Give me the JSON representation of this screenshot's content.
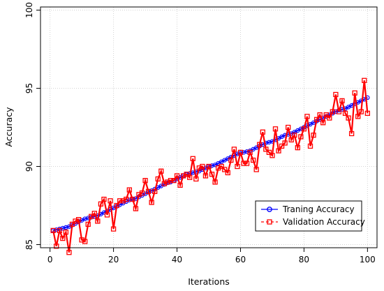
{
  "chart_data": {
    "type": "line",
    "title": "",
    "xlabel": "Iterations",
    "ylabel": "Accuracy",
    "xlim": [
      -3,
      103
    ],
    "ylim": [
      84.8,
      100.2
    ],
    "xticks": [
      0,
      20,
      40,
      60,
      80,
      100
    ],
    "yticks": [
      85,
      90,
      95,
      100
    ],
    "grid": true,
    "legend_position": "bottom-right",
    "series": [
      {
        "name": "Traning Accuracy",
        "color": "#0000ff",
        "marker": "circle",
        "line_style": "solid",
        "x": [
          1,
          2,
          3,
          4,
          5,
          6,
          7,
          8,
          9,
          10,
          11,
          12,
          13,
          14,
          15,
          16,
          17,
          18,
          19,
          20,
          21,
          22,
          23,
          24,
          25,
          26,
          27,
          28,
          29,
          30,
          31,
          32,
          33,
          34,
          35,
          36,
          37,
          38,
          39,
          40,
          41,
          42,
          43,
          44,
          45,
          46,
          47,
          48,
          49,
          50,
          51,
          52,
          53,
          54,
          55,
          56,
          57,
          58,
          59,
          60,
          61,
          62,
          63,
          64,
          65,
          66,
          67,
          68,
          69,
          70,
          71,
          72,
          73,
          74,
          75,
          76,
          77,
          78,
          79,
          80,
          81,
          82,
          83,
          84,
          85,
          86,
          87,
          88,
          89,
          90,
          91,
          92,
          93,
          94,
          95,
          96,
          97,
          98,
          99,
          100
        ],
        "values": [
          85.9,
          85.95,
          86.0,
          86.05,
          86.1,
          86.15,
          86.25,
          86.35,
          86.45,
          86.55,
          86.65,
          86.7,
          86.75,
          86.8,
          86.85,
          86.95,
          87.05,
          87.15,
          87.25,
          87.35,
          87.45,
          87.55,
          87.65,
          87.75,
          87.85,
          87.9,
          87.95,
          88.05,
          88.15,
          88.25,
          88.35,
          88.45,
          88.55,
          88.65,
          88.75,
          88.85,
          88.95,
          89.0,
          89.1,
          89.2,
          89.3,
          89.4,
          89.5,
          89.55,
          89.6,
          89.65,
          89.7,
          89.8,
          89.9,
          90.0,
          90.05,
          90.1,
          90.2,
          90.3,
          90.4,
          90.5,
          90.6,
          90.7,
          90.8,
          90.85,
          90.9,
          90.95,
          91.0,
          91.1,
          91.2,
          91.3,
          91.4,
          91.5,
          91.55,
          91.6,
          91.7,
          91.8,
          91.9,
          92.0,
          92.05,
          92.1,
          92.2,
          92.3,
          92.4,
          92.5,
          92.6,
          92.7,
          92.8,
          92.9,
          93.0,
          93.1,
          93.2,
          93.3,
          93.4,
          93.5,
          93.6,
          93.65,
          93.7,
          93.8,
          93.9,
          94.0,
          94.1,
          94.2,
          94.3,
          94.4
        ]
      },
      {
        "name": "Validation Accuracy",
        "color": "#ff0000",
        "marker": "square",
        "line_style": "solid",
        "x": [
          1,
          2,
          3,
          4,
          5,
          6,
          7,
          8,
          9,
          10,
          11,
          12,
          13,
          14,
          15,
          16,
          17,
          18,
          19,
          20,
          21,
          22,
          23,
          24,
          25,
          26,
          27,
          28,
          29,
          30,
          31,
          32,
          33,
          34,
          35,
          36,
          37,
          38,
          39,
          40,
          41,
          42,
          43,
          44,
          45,
          46,
          47,
          48,
          49,
          50,
          51,
          52,
          53,
          54,
          55,
          56,
          57,
          58,
          59,
          60,
          61,
          62,
          63,
          64,
          65,
          66,
          67,
          68,
          69,
          70,
          71,
          72,
          73,
          74,
          75,
          76,
          77,
          78,
          79,
          80,
          81,
          82,
          83,
          84,
          85,
          86,
          87,
          88,
          89,
          90,
          91,
          92,
          93,
          94,
          95,
          96,
          97,
          98,
          99,
          100
        ],
        "values": [
          85.9,
          84.9,
          85.9,
          85.4,
          85.8,
          84.5,
          86.3,
          86.5,
          86.6,
          85.3,
          85.2,
          86.3,
          86.8,
          87.0,
          86.5,
          87.6,
          87.9,
          86.9,
          87.8,
          86.0,
          87.5,
          87.8,
          87.8,
          87.9,
          88.5,
          87.9,
          87.3,
          88.2,
          88.3,
          89.1,
          88.4,
          87.7,
          88.4,
          89.2,
          89.7,
          88.9,
          89.0,
          89.1,
          89.1,
          89.4,
          88.8,
          89.4,
          89.5,
          89.3,
          90.5,
          89.2,
          89.9,
          90.0,
          89.4,
          90.0,
          89.5,
          89.0,
          89.9,
          90.0,
          89.8,
          89.6,
          90.4,
          91.1,
          90.0,
          90.9,
          90.2,
          90.2,
          90.9,
          90.4,
          89.8,
          91.4,
          92.2,
          91.1,
          90.9,
          90.7,
          92.4,
          91.0,
          91.3,
          91.5,
          92.5,
          91.7,
          92.0,
          91.2,
          91.9,
          92.4,
          93.2,
          91.3,
          92.0,
          93.0,
          93.3,
          92.8,
          93.3,
          93.1,
          93.5,
          94.6,
          93.5,
          94.2,
          93.4,
          93.1,
          92.1,
          94.7,
          93.2,
          93.5,
          95.5,
          93.4
        ]
      }
    ]
  }
}
